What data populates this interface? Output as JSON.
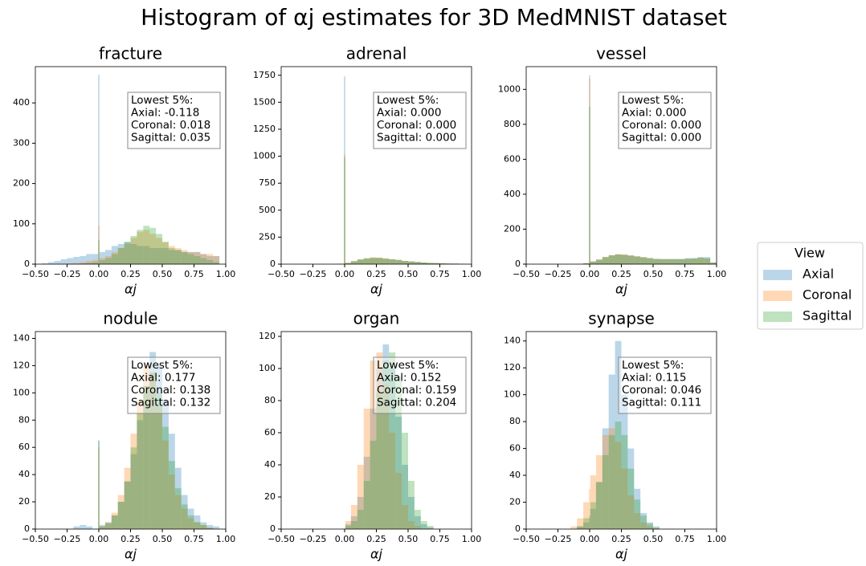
{
  "title": "Histogram of αj estimates for 3D MedMNIST dataset",
  "legend": {
    "title": "View",
    "position": "right"
  },
  "chart_data": [
    {
      "type": "histogram",
      "title": "fracture",
      "xlabel": "αj",
      "opacity": 0.3,
      "bins": [
        -0.5,
        -0.45,
        -0.4,
        -0.35,
        -0.3,
        -0.25,
        -0.2,
        -0.15,
        -0.1,
        -0.05,
        -0.005,
        0.005,
        0.05,
        0.1,
        0.15,
        0.2,
        0.25,
        0.3,
        0.35,
        0.4,
        0.45,
        0.5,
        0.55,
        0.6,
        0.65,
        0.7,
        0.75,
        0.8,
        0.85,
        0.9,
        0.95,
        1.0
      ],
      "series": [
        {
          "name": "Axial",
          "color": "#1f77b4",
          "values": [
            0,
            2,
            5,
            8,
            12,
            15,
            18,
            20,
            25,
            25,
            470,
            30,
            35,
            45,
            50,
            55,
            50,
            45,
            45,
            40,
            40,
            40,
            35,
            35,
            30,
            30,
            30,
            25,
            20,
            20,
            0
          ]
        },
        {
          "name": "Coronal",
          "color": "#ff7f0e",
          "values": [
            0,
            0,
            0,
            0,
            0,
            2,
            3,
            5,
            8,
            10,
            95,
            15,
            20,
            30,
            40,
            50,
            65,
            80,
            85,
            75,
            65,
            55,
            45,
            40,
            35,
            30,
            30,
            25,
            25,
            20,
            0
          ]
        },
        {
          "name": "Sagittal",
          "color": "#2ca02c",
          "values": [
            0,
            0,
            0,
            0,
            0,
            0,
            0,
            2,
            3,
            5,
            60,
            10,
            15,
            25,
            40,
            55,
            70,
            85,
            95,
            90,
            75,
            55,
            40,
            35,
            30,
            25,
            20,
            15,
            10,
            5,
            0
          ]
        }
      ],
      "annotation": [
        "Lowest 5%:",
        "Axial: -0.118",
        "Coronal: 0.018",
        "Sagittal: 0.035"
      ],
      "xlim": [
        -0.5,
        1.0
      ],
      "ylim": [
        0,
        490
      ],
      "xticks": [
        {
          "value": -0.5,
          "label": "−0.50"
        },
        {
          "value": -0.25,
          "label": "−0.25"
        },
        {
          "value": 0,
          "label": "0.00"
        },
        {
          "value": 0.25,
          "label": "0.25"
        },
        {
          "value": 0.5,
          "label": "0.50"
        },
        {
          "value": 0.75,
          "label": "0.75"
        },
        {
          "value": 1,
          "label": "1.00"
        }
      ],
      "yticks": [
        0,
        100,
        200,
        300,
        400
      ]
    },
    {
      "type": "histogram",
      "title": "adrenal",
      "xlabel": "αj",
      "opacity": 0.3,
      "bins": [
        -0.5,
        -0.45,
        -0.4,
        -0.35,
        -0.3,
        -0.25,
        -0.2,
        -0.15,
        -0.1,
        -0.05,
        -0.005,
        0.005,
        0.05,
        0.1,
        0.15,
        0.2,
        0.25,
        0.3,
        0.35,
        0.4,
        0.45,
        0.5,
        0.55,
        0.6,
        0.65,
        0.7,
        0.75,
        0.8,
        0.85,
        0.9,
        0.95,
        1.0
      ],
      "series": [
        {
          "name": "Axial",
          "color": "#1f77b4",
          "values": [
            0,
            0,
            0,
            0,
            0,
            0,
            0,
            0,
            0,
            3,
            1740,
            10,
            25,
            40,
            50,
            55,
            55,
            50,
            45,
            40,
            30,
            25,
            20,
            15,
            10,
            10,
            8,
            5,
            5,
            3,
            0
          ]
        },
        {
          "name": "Coronal",
          "color": "#ff7f0e",
          "values": [
            0,
            0,
            0,
            0,
            0,
            0,
            0,
            0,
            0,
            3,
            1020,
            12,
            30,
            45,
            55,
            65,
            60,
            55,
            45,
            40,
            30,
            25,
            20,
            15,
            12,
            10,
            8,
            6,
            5,
            3,
            0
          ]
        },
        {
          "name": "Sagittal",
          "color": "#2ca02c",
          "values": [
            0,
            0,
            0,
            0,
            0,
            0,
            0,
            0,
            0,
            3,
            990,
            12,
            28,
            45,
            55,
            60,
            60,
            50,
            45,
            38,
            30,
            25,
            20,
            15,
            12,
            10,
            8,
            6,
            5,
            3,
            0
          ]
        }
      ],
      "annotation": [
        "Lowest 5%:",
        "Axial: 0.000",
        "Coronal: 0.000",
        "Sagittal: 0.000"
      ],
      "xlim": [
        -0.5,
        1.0
      ],
      "ylim": [
        0,
        1830
      ],
      "xticks": [
        {
          "value": -0.5,
          "label": "−0.50"
        },
        {
          "value": -0.25,
          "label": "−0.25"
        },
        {
          "value": 0,
          "label": "0.00"
        },
        {
          "value": 0.25,
          "label": "0.25"
        },
        {
          "value": 0.5,
          "label": "0.50"
        },
        {
          "value": 0.75,
          "label": "0.75"
        },
        {
          "value": 1,
          "label": "1.00"
        }
      ],
      "yticks": [
        0,
        250,
        500,
        750,
        1000,
        1250,
        1500,
        1750
      ]
    },
    {
      "type": "histogram",
      "title": "vessel",
      "xlabel": "αj",
      "opacity": 0.3,
      "bins": [
        -0.5,
        -0.45,
        -0.4,
        -0.35,
        -0.3,
        -0.25,
        -0.2,
        -0.15,
        -0.1,
        -0.05,
        -0.005,
        0.005,
        0.05,
        0.1,
        0.15,
        0.2,
        0.25,
        0.3,
        0.35,
        0.4,
        0.45,
        0.5,
        0.55,
        0.6,
        0.65,
        0.7,
        0.75,
        0.8,
        0.85,
        0.9,
        0.95,
        1.0
      ],
      "series": [
        {
          "name": "Axial",
          "color": "#1f77b4",
          "values": [
            0,
            0,
            0,
            0,
            0,
            0,
            0,
            0,
            0,
            5,
            1080,
            15,
            25,
            40,
            50,
            55,
            55,
            50,
            45,
            40,
            35,
            30,
            30,
            30,
            30,
            30,
            35,
            35,
            40,
            40,
            10
          ]
        },
        {
          "name": "Coronal",
          "color": "#ff7f0e",
          "values": [
            0,
            0,
            0,
            0,
            0,
            0,
            0,
            0,
            0,
            5,
            1060,
            15,
            28,
            42,
            52,
            58,
            55,
            50,
            45,
            40,
            35,
            30,
            28,
            28,
            28,
            28,
            30,
            32,
            35,
            30,
            8
          ]
        },
        {
          "name": "Sagittal",
          "color": "#2ca02c",
          "values": [
            0,
            0,
            0,
            0,
            0,
            0,
            0,
            0,
            0,
            5,
            900,
            15,
            25,
            40,
            50,
            55,
            52,
            48,
            42,
            38,
            33,
            30,
            28,
            28,
            28,
            28,
            30,
            32,
            38,
            35,
            8
          ]
        }
      ],
      "annotation": [
        "Lowest 5%:",
        "Axial: 0.000",
        "Coronal: 0.000",
        "Sagittal: 0.000"
      ],
      "xlim": [
        -0.5,
        1.0
      ],
      "ylim": [
        0,
        1130
      ],
      "xticks": [
        {
          "value": -0.5,
          "label": "−0.50"
        },
        {
          "value": -0.25,
          "label": "−0.25"
        },
        {
          "value": 0,
          "label": "0.00"
        },
        {
          "value": 0.25,
          "label": "0.25"
        },
        {
          "value": 0.5,
          "label": "0.50"
        },
        {
          "value": 0.75,
          "label": "0.75"
        },
        {
          "value": 1,
          "label": "1.00"
        }
      ],
      "yticks": [
        0,
        200,
        400,
        600,
        800,
        1000
      ]
    },
    {
      "type": "histogram",
      "title": "nodule",
      "xlabel": "αj",
      "opacity": 0.3,
      "bins": [
        -0.5,
        -0.45,
        -0.4,
        -0.35,
        -0.3,
        -0.25,
        -0.2,
        -0.15,
        -0.1,
        -0.05,
        -0.005,
        0.005,
        0.05,
        0.1,
        0.15,
        0.2,
        0.25,
        0.3,
        0.35,
        0.4,
        0.45,
        0.5,
        0.55,
        0.6,
        0.65,
        0.7,
        0.75,
        0.8,
        0.85,
        0.9,
        0.95,
        1.0
      ],
      "series": [
        {
          "name": "Axial",
          "color": "#1f77b4",
          "values": [
            0,
            0,
            0,
            0,
            0,
            0,
            2,
            3,
            2,
            0,
            65,
            3,
            5,
            10,
            20,
            35,
            55,
            80,
            105,
            130,
            120,
            95,
            70,
            45,
            25,
            15,
            10,
            5,
            3,
            2,
            0
          ]
        },
        {
          "name": "Coronal",
          "color": "#ff7f0e",
          "values": [
            0,
            0,
            0,
            0,
            0,
            0,
            0,
            0,
            0,
            0,
            60,
            2,
            5,
            12,
            25,
            45,
            70,
            95,
            120,
            115,
            90,
            65,
            40,
            25,
            15,
            8,
            5,
            3,
            1,
            0,
            0
          ]
        },
        {
          "name": "Sagittal",
          "color": "#2ca02c",
          "values": [
            0,
            0,
            0,
            0,
            0,
            0,
            0,
            0,
            0,
            0,
            65,
            2,
            4,
            10,
            20,
            35,
            60,
            85,
            105,
            115,
            100,
            75,
            50,
            30,
            18,
            10,
            5,
            3,
            1,
            0,
            0
          ]
        }
      ],
      "annotation": [
        "Lowest 5%:",
        "Axial: 0.177",
        "Coronal: 0.138",
        "Sagittal: 0.132"
      ],
      "xlim": [
        -0.5,
        1.0
      ],
      "ylim": [
        0,
        145
      ],
      "xticks": [
        {
          "value": -0.5,
          "label": "−0.50"
        },
        {
          "value": -0.25,
          "label": "−0.25"
        },
        {
          "value": 0,
          "label": "0.00"
        },
        {
          "value": 0.25,
          "label": "0.25"
        },
        {
          "value": 0.5,
          "label": "0.50"
        },
        {
          "value": 0.75,
          "label": "0.75"
        },
        {
          "value": 1,
          "label": "1.00"
        }
      ],
      "yticks": [
        0,
        20,
        40,
        60,
        80,
        100,
        120,
        140
      ]
    },
    {
      "type": "histogram",
      "title": "organ",
      "xlabel": "αj",
      "opacity": 0.3,
      "bins": [
        -0.5,
        -0.45,
        -0.4,
        -0.35,
        -0.3,
        -0.25,
        -0.2,
        -0.15,
        -0.1,
        -0.05,
        -0.005,
        0.005,
        0.05,
        0.1,
        0.15,
        0.2,
        0.25,
        0.3,
        0.35,
        0.4,
        0.45,
        0.5,
        0.55,
        0.6,
        0.65,
        0.7,
        0.75,
        0.8,
        0.85,
        0.9,
        0.95,
        1.0
      ],
      "series": [
        {
          "name": "Axial",
          "color": "#1f77b4",
          "values": [
            0,
            0,
            0,
            0,
            0,
            0,
            0,
            0,
            0,
            0,
            0,
            3,
            8,
            20,
            45,
            75,
            100,
            115,
            100,
            70,
            40,
            20,
            8,
            3,
            1,
            0,
            0,
            0,
            0,
            0,
            0
          ]
        },
        {
          "name": "Coronal",
          "color": "#ff7f0e",
          "values": [
            0,
            0,
            0,
            0,
            0,
            0,
            0,
            0,
            0,
            0,
            0,
            5,
            15,
            40,
            75,
            105,
            110,
            90,
            60,
            35,
            15,
            5,
            2,
            0,
            0,
            0,
            0,
            0,
            0,
            0,
            0
          ]
        },
        {
          "name": "Sagittal",
          "color": "#2ca02c",
          "values": [
            0,
            0,
            0,
            0,
            0,
            0,
            0,
            0,
            0,
            0,
            0,
            2,
            5,
            12,
            30,
            55,
            85,
            105,
            110,
            95,
            60,
            30,
            12,
            5,
            2,
            0,
            0,
            0,
            0,
            0,
            0
          ]
        }
      ],
      "annotation": [
        "Lowest 5%:",
        "Axial: 0.152",
        "Coronal: 0.159",
        "Sagittal: 0.204"
      ],
      "xlim": [
        -0.5,
        1.0
      ],
      "ylim": [
        0,
        123
      ],
      "xticks": [
        {
          "value": -0.5,
          "label": "−0.50"
        },
        {
          "value": -0.25,
          "label": "−0.25"
        },
        {
          "value": 0,
          "label": "0.00"
        },
        {
          "value": 0.25,
          "label": "0.25"
        },
        {
          "value": 0.5,
          "label": "0.50"
        },
        {
          "value": 0.75,
          "label": "0.75"
        },
        {
          "value": 1,
          "label": "1.00"
        }
      ],
      "yticks": [
        0,
        20,
        40,
        60,
        80,
        100,
        120
      ]
    },
    {
      "type": "histogram",
      "title": "synapse",
      "xlabel": "αj",
      "opacity": 0.3,
      "bins": [
        -0.5,
        -0.45,
        -0.4,
        -0.35,
        -0.3,
        -0.25,
        -0.2,
        -0.15,
        -0.1,
        -0.05,
        -0.005,
        0.005,
        0.05,
        0.1,
        0.15,
        0.2,
        0.25,
        0.3,
        0.35,
        0.4,
        0.45,
        0.5,
        0.55,
        0.6,
        0.65,
        0.7,
        0.75,
        0.8,
        0.85,
        0.9,
        0.95,
        1.0
      ],
      "series": [
        {
          "name": "Axial",
          "color": "#1f77b4",
          "values": [
            0,
            0,
            0,
            0,
            0,
            0,
            0,
            0,
            2,
            5,
            8,
            15,
            35,
            75,
            115,
            140,
            100,
            60,
            30,
            12,
            5,
            2,
            0,
            0,
            0,
            0,
            0,
            0,
            0,
            0,
            0
          ]
        },
        {
          "name": "Coronal",
          "color": "#ff7f0e",
          "values": [
            0,
            0,
            0,
            0,
            0,
            0,
            0,
            2,
            8,
            20,
            30,
            40,
            55,
            70,
            75,
            65,
            45,
            25,
            12,
            5,
            2,
            0,
            0,
            0,
            0,
            0,
            0,
            0,
            0,
            0,
            0
          ]
        },
        {
          "name": "Sagittal",
          "color": "#2ca02c",
          "values": [
            0,
            0,
            0,
            0,
            0,
            0,
            0,
            0,
            2,
            8,
            10,
            20,
            35,
            55,
            70,
            80,
            70,
            45,
            22,
            10,
            4,
            1,
            0,
            0,
            0,
            0,
            0,
            0,
            0,
            0,
            0
          ]
        }
      ],
      "annotation": [
        "Lowest 5%:",
        "Axial: 0.115",
        "Coronal: 0.046",
        "Sagittal: 0.111"
      ],
      "xlim": [
        -0.5,
        1.0
      ],
      "ylim": [
        0,
        147
      ],
      "xticks": [
        {
          "value": -0.5,
          "label": "−0.50"
        },
        {
          "value": -0.25,
          "label": "−0.25"
        },
        {
          "value": 0,
          "label": "0.00"
        },
        {
          "value": 0.25,
          "label": "0.25"
        },
        {
          "value": 0.5,
          "label": "0.50"
        },
        {
          "value": 0.75,
          "label": "0.75"
        },
        {
          "value": 1,
          "label": "1.00"
        }
      ],
      "yticks": [
        0,
        20,
        40,
        60,
        80,
        100,
        120,
        140
      ]
    }
  ]
}
